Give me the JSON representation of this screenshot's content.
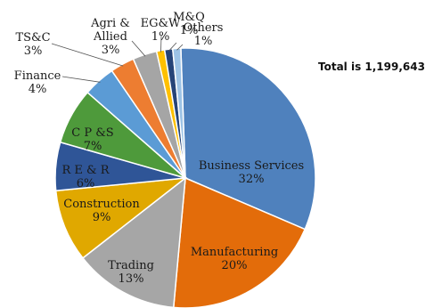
{
  "chart_data": {
    "type": "pie",
    "total_label": "Total is 1,199,643",
    "slices": [
      {
        "label": "Business Services",
        "pct_label": "32%",
        "value": 32,
        "color": "#4F81BD"
      },
      {
        "label": "Manufacturing",
        "pct_label": "20%",
        "value": 20,
        "color": "#E36C0A"
      },
      {
        "label": "Trading",
        "pct_label": "13%",
        "value": 13,
        "color": "#A6A6A6"
      },
      {
        "label": "Construction",
        "pct_label": "9%",
        "value": 9,
        "color": "#E0A800"
      },
      {
        "label": "R E & R",
        "pct_label": "6%",
        "value": 6,
        "color": "#2F5597"
      },
      {
        "label": "C P &S",
        "pct_label": "7%",
        "value": 7,
        "color": "#4E9A3B"
      },
      {
        "label": "Finance",
        "pct_label": "4%",
        "value": 4,
        "color": "#5B9BD5"
      },
      {
        "label": "TS&C",
        "pct_label": "3%",
        "value": 3,
        "color": "#ED7D31"
      },
      {
        "label": "Agri & Allied",
        "pct_label": "3%",
        "value": 3,
        "color": "#A5A5A5"
      },
      {
        "label": "EG&W",
        "pct_label": "1%",
        "value": 1,
        "color": "#FFC000"
      },
      {
        "label": "M&Q",
        "pct_label": "1%",
        "value": 1,
        "color": "#264478"
      },
      {
        "label": "Others",
        "pct_label": "1%",
        "value": 1,
        "color": "#9DC3E6"
      }
    ]
  }
}
